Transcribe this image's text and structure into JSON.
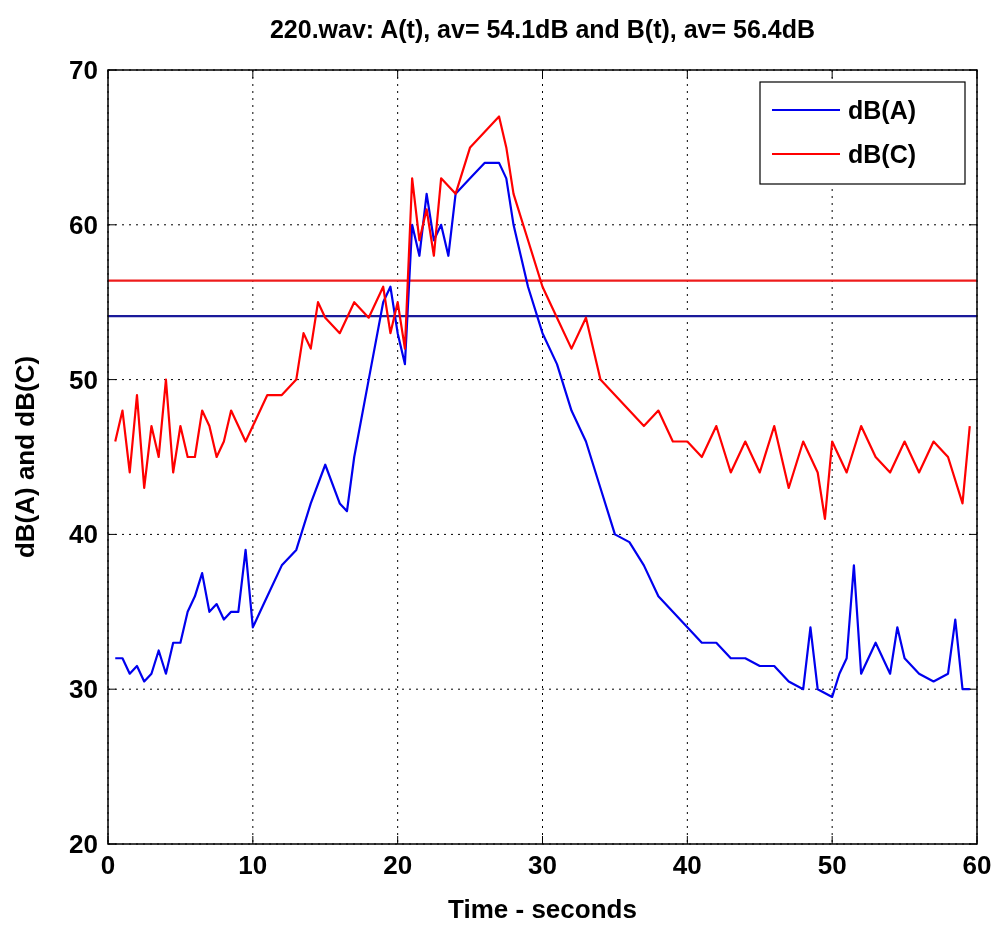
{
  "chart_data": {
    "type": "line",
    "title": "220.wav: A(t), av=  54.1dB and B(t), av=  56.4dB",
    "xlabel": "Time - seconds",
    "ylabel": "dB(A) and dB(C)",
    "xlim": [
      0,
      60
    ],
    "ylim": [
      20,
      70
    ],
    "xticks": [
      0,
      10,
      20,
      30,
      40,
      50,
      60
    ],
    "yticks": [
      20,
      30,
      40,
      50,
      60,
      70
    ],
    "grid": true,
    "legend": "top right",
    "line_style": "solid",
    "series": [
      {
        "name": "dB(A)",
        "color": "#0000ee",
        "x": [
          0.5,
          1,
          1.5,
          2,
          2.5,
          3,
          3.5,
          4,
          4.5,
          5,
          5.5,
          6,
          6.5,
          7,
          7.5,
          8,
          8.5,
          9,
          9.5,
          10,
          10.5,
          11,
          12,
          13,
          14,
          15,
          16,
          16.5,
          17,
          18,
          19,
          19.5,
          20,
          20.5,
          21,
          21.5,
          22,
          22.5,
          23,
          23.5,
          24,
          25,
          26,
          27,
          27.5,
          28,
          29,
          30,
          31,
          32,
          33,
          34,
          35,
          36,
          37,
          38,
          39,
          40,
          41,
          42,
          43,
          44,
          45,
          46,
          47,
          48,
          48.5,
          49,
          50,
          50.5,
          51,
          51.5,
          52,
          53,
          54,
          54.5,
          55,
          56,
          57,
          58,
          58.5,
          59,
          59.5
        ],
        "values": [
          32,
          32,
          31,
          31.5,
          30.5,
          31,
          32.5,
          31,
          33,
          33,
          35,
          36,
          37.5,
          35,
          35.5,
          34.5,
          35,
          35,
          39,
          34,
          35,
          36,
          38,
          39,
          42,
          44.5,
          42,
          41.5,
          45,
          50,
          55,
          56,
          53,
          51,
          60,
          58,
          62,
          59,
          60,
          58,
          62,
          63,
          64,
          64,
          63,
          60,
          56,
          53,
          51,
          48,
          46,
          43,
          40,
          39.5,
          38,
          36,
          35,
          34,
          33,
          33,
          32,
          32,
          31.5,
          31.5,
          30.5,
          30,
          34,
          30,
          29.5,
          31,
          32,
          38,
          31,
          33,
          31,
          34,
          32,
          31,
          30.5,
          31,
          34.5,
          30,
          30
        ]
      },
      {
        "name": "dB(C)",
        "color": "#ff0000",
        "x": [
          0.5,
          1,
          1.5,
          2,
          2.5,
          3,
          3.5,
          4,
          4.5,
          5,
          5.5,
          6,
          6.5,
          7,
          7.5,
          8,
          8.5,
          9,
          9.5,
          10,
          11,
          12,
          13,
          13.5,
          14,
          14.5,
          15,
          16,
          17,
          18,
          19,
          19.5,
          20,
          20.5,
          21,
          21.5,
          22,
          22.5,
          23,
          24,
          25,
          26,
          27,
          27.5,
          28,
          29,
          30,
          31,
          32,
          33,
          34,
          35,
          36,
          37,
          38,
          39,
          40,
          41,
          42,
          43,
          44,
          45,
          46,
          47,
          48,
          49,
          49.5,
          50,
          51,
          52,
          53,
          54,
          55,
          56,
          57,
          58,
          59,
          59.5
        ],
        "values": [
          46,
          48,
          44,
          49,
          43,
          47,
          45,
          50,
          44,
          47,
          45,
          45,
          48,
          47,
          45,
          46,
          48,
          47,
          46,
          47,
          49,
          49,
          50,
          53,
          52,
          55,
          54,
          53,
          55,
          54,
          56,
          53,
          55,
          52,
          63,
          59,
          61,
          58,
          63,
          62,
          65,
          66,
          67,
          65,
          62,
          59,
          56,
          54,
          52,
          54,
          50,
          49,
          48,
          47,
          48,
          46,
          46,
          45,
          47,
          44,
          46,
          44,
          47,
          43,
          46,
          44,
          41,
          46,
          44,
          47,
          45,
          44,
          46,
          44,
          46,
          45,
          42,
          47
        ]
      }
    ],
    "ref_lines": [
      {
        "axis": "y",
        "value": 54.1,
        "color": "#1a1a9a"
      },
      {
        "axis": "y",
        "value": 56.4,
        "color": "#ee1c1c"
      }
    ]
  }
}
